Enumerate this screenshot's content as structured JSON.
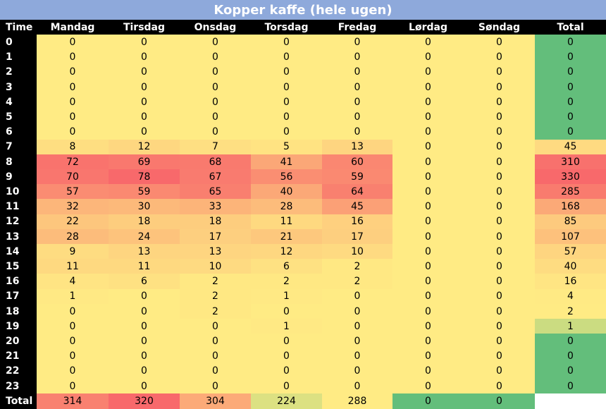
{
  "title": "Kopper kaffe (hele ugen)",
  "header": [
    "Time",
    "Mandag",
    "Tirsdag",
    "Onsdag",
    "Torsdag",
    "Fredag",
    "Lørdag",
    "Søndag",
    "Total"
  ],
  "rows": [
    {
      "label": 0,
      "values": [
        0,
        0,
        0,
        0,
        0,
        0,
        0,
        0
      ]
    },
    {
      "label": 1,
      "values": [
        0,
        0,
        0,
        0,
        0,
        0,
        0,
        0
      ]
    },
    {
      "label": 2,
      "values": [
        0,
        0,
        0,
        0,
        0,
        0,
        0,
        0
      ]
    },
    {
      "label": 3,
      "values": [
        0,
        0,
        0,
        0,
        0,
        0,
        0,
        0
      ]
    },
    {
      "label": 4,
      "values": [
        0,
        0,
        0,
        0,
        0,
        0,
        0,
        0
      ]
    },
    {
      "label": 5,
      "values": [
        0,
        0,
        0,
        0,
        0,
        0,
        0,
        0
      ]
    },
    {
      "label": 6,
      "values": [
        0,
        0,
        0,
        0,
        0,
        0,
        0,
        0
      ]
    },
    {
      "label": 7,
      "values": [
        8,
        12,
        7,
        5,
        13,
        0,
        0,
        45
      ]
    },
    {
      "label": 8,
      "values": [
        72,
        69,
        68,
        41,
        60,
        0,
        0,
        310
      ]
    },
    {
      "label": 9,
      "values": [
        70,
        78,
        67,
        56,
        59,
        0,
        0,
        330
      ]
    },
    {
      "label": 10,
      "values": [
        57,
        59,
        65,
        40,
        64,
        0,
        0,
        285
      ]
    },
    {
      "label": 11,
      "values": [
        32,
        30,
        33,
        28,
        45,
        0,
        0,
        168
      ]
    },
    {
      "label": 12,
      "values": [
        22,
        18,
        18,
        11,
        16,
        0,
        0,
        85
      ]
    },
    {
      "label": 13,
      "values": [
        28,
        24,
        17,
        21,
        17,
        0,
        0,
        107
      ]
    },
    {
      "label": 14,
      "values": [
        9,
        13,
        13,
        12,
        10,
        0,
        0,
        57
      ]
    },
    {
      "label": 15,
      "values": [
        11,
        11,
        10,
        6,
        2,
        0,
        0,
        40
      ]
    },
    {
      "label": 16,
      "values": [
        4,
        6,
        2,
        2,
        2,
        0,
        0,
        16
      ]
    },
    {
      "label": 17,
      "values": [
        1,
        0,
        2,
        1,
        0,
        0,
        0,
        4
      ]
    },
    {
      "label": 18,
      "values": [
        0,
        0,
        2,
        0,
        0,
        0,
        0,
        2
      ]
    },
    {
      "label": 19,
      "values": [
        0,
        0,
        0,
        1,
        0,
        0,
        0,
        1
      ]
    },
    {
      "label": 20,
      "values": [
        0,
        0,
        0,
        0,
        0,
        0,
        0,
        0
      ]
    },
    {
      "label": 21,
      "values": [
        0,
        0,
        0,
        0,
        0,
        0,
        0,
        0
      ]
    },
    {
      "label": 22,
      "values": [
        0,
        0,
        0,
        0,
        0,
        0,
        0,
        0
      ]
    },
    {
      "label": 23,
      "values": [
        0,
        0,
        0,
        0,
        0,
        0,
        0,
        0
      ]
    }
  ],
  "total_row": {
    "label": "Total",
    "values": [
      314,
      320,
      304,
      224,
      288,
      0,
      0
    ]
  },
  "colors": {
    "min": "#63be7b",
    "mid": "#ffeb84",
    "max": "#f8696b"
  }
}
